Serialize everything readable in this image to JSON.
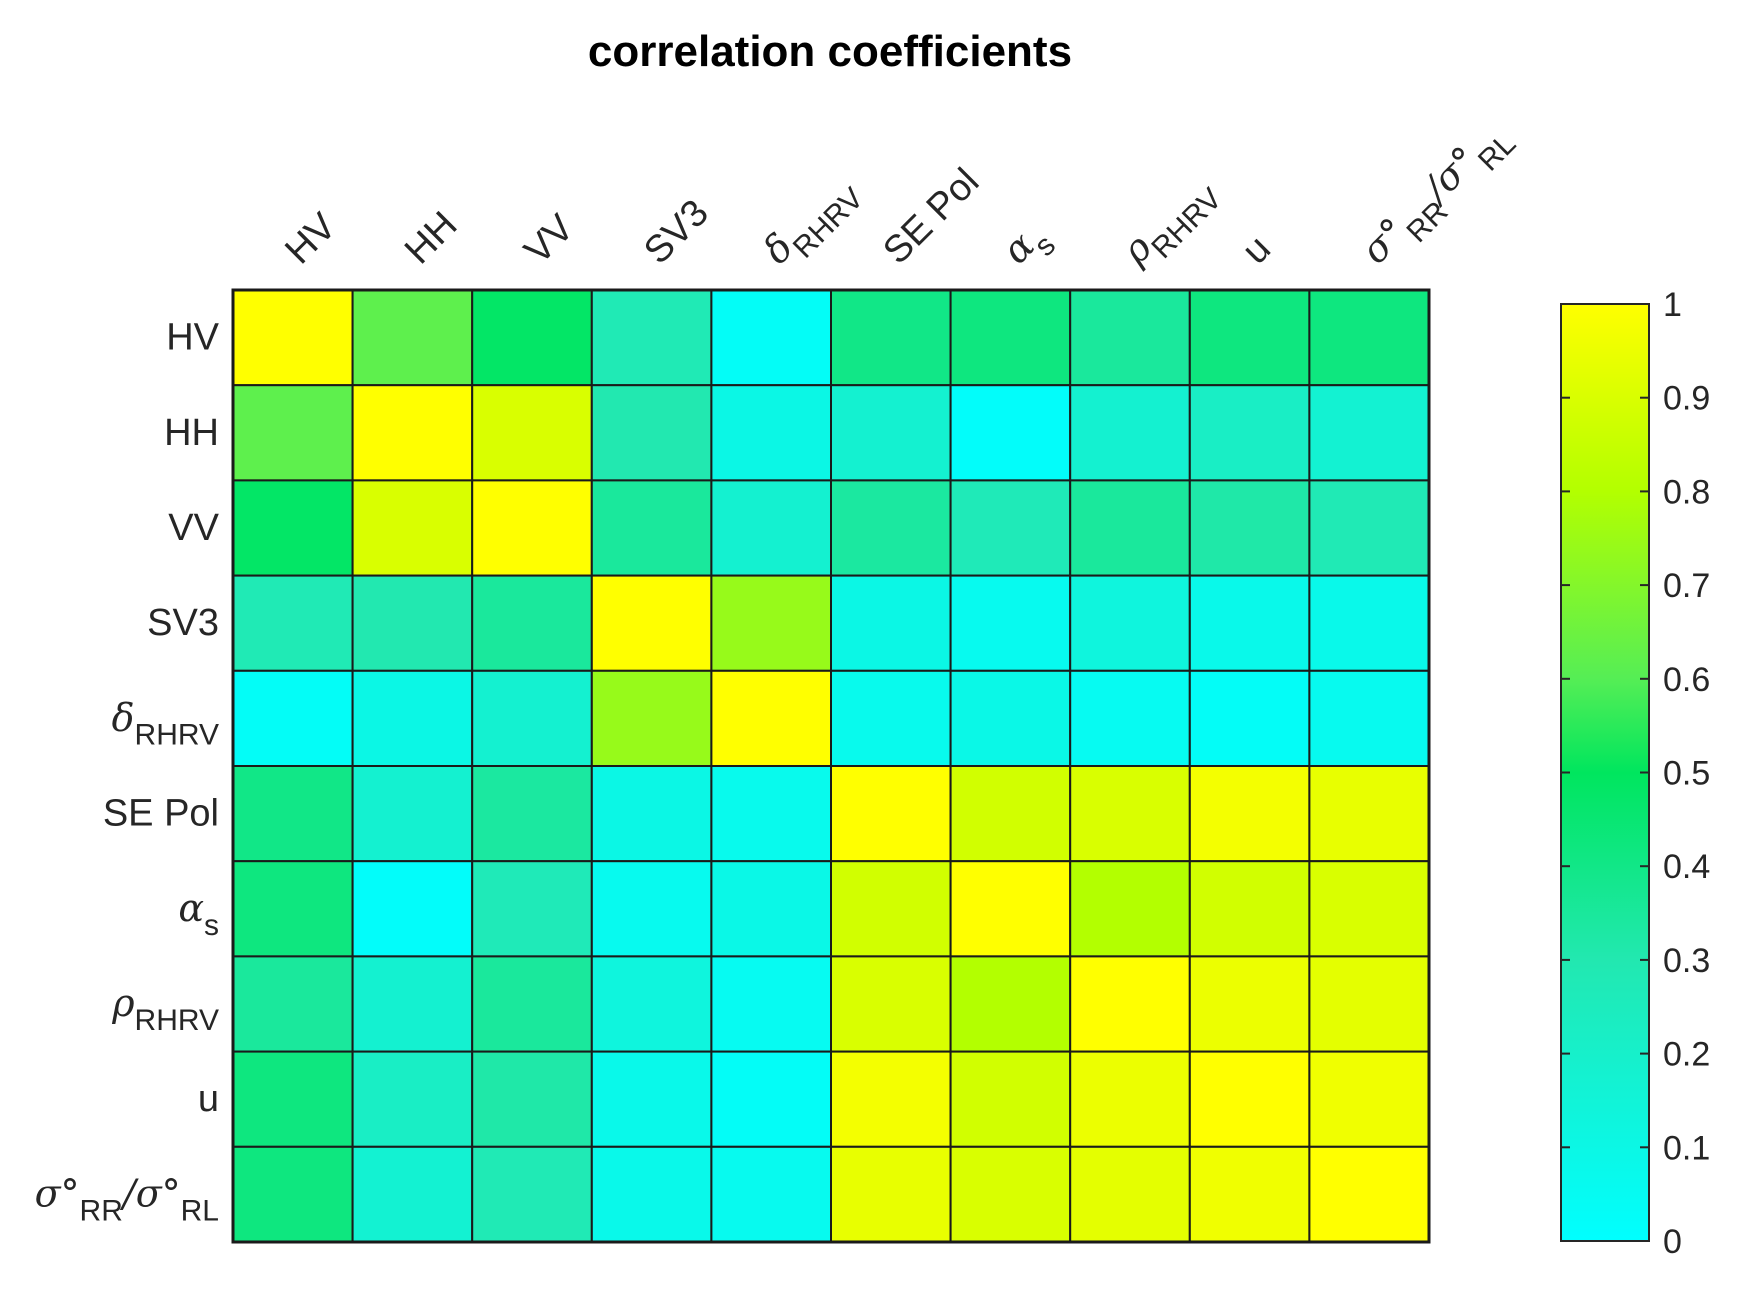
{
  "chart_data": {
    "type": "heatmap",
    "title": "correlation coefficients",
    "labels": [
      {
        "base": "HV",
        "sub": "",
        "greek": false
      },
      {
        "base": "HH",
        "sub": "",
        "greek": false
      },
      {
        "base": "VV",
        "sub": "",
        "greek": false
      },
      {
        "base": "SV3",
        "sub": "",
        "greek": false
      },
      {
        "base": "δ",
        "sub": "RHRV",
        "greek": true
      },
      {
        "base": "SE Pol",
        "sub": "",
        "greek": false
      },
      {
        "base": "α",
        "sub": "s",
        "greek": true
      },
      {
        "base": "ρ",
        "sub": "RHRV",
        "greek": true
      },
      {
        "base": "u",
        "sub": "",
        "greek": false
      },
      {
        "base": "σ°",
        "sub": "RR",
        "mid": "/σ°",
        "sub2": "RL",
        "greek": true
      }
    ],
    "matrix": [
      [
        1.0,
        0.62,
        0.48,
        0.28,
        0.03,
        0.4,
        0.42,
        0.35,
        0.42,
        0.42
      ],
      [
        0.62,
        1.0,
        0.9,
        0.3,
        0.1,
        0.18,
        0.02,
        0.18,
        0.22,
        0.17
      ],
      [
        0.48,
        0.9,
        1.0,
        0.35,
        0.18,
        0.34,
        0.27,
        0.35,
        0.32,
        0.28
      ],
      [
        0.28,
        0.3,
        0.35,
        1.0,
        0.74,
        0.1,
        0.06,
        0.13,
        0.08,
        0.08
      ],
      [
        0.03,
        0.1,
        0.18,
        0.74,
        1.0,
        0.07,
        0.09,
        0.05,
        0.03,
        0.06
      ],
      [
        0.4,
        0.18,
        0.34,
        0.1,
        0.07,
        1.0,
        0.88,
        0.9,
        0.97,
        0.94
      ],
      [
        0.42,
        0.02,
        0.27,
        0.06,
        0.09,
        0.88,
        1.0,
        0.8,
        0.88,
        0.9
      ],
      [
        0.35,
        0.18,
        0.35,
        0.13,
        0.05,
        0.9,
        0.8,
        1.0,
        0.95,
        0.93
      ],
      [
        0.42,
        0.22,
        0.32,
        0.08,
        0.03,
        0.97,
        0.88,
        0.95,
        1.0,
        0.96
      ],
      [
        0.42,
        0.17,
        0.28,
        0.08,
        0.06,
        0.94,
        0.9,
        0.93,
        0.96,
        1.0
      ]
    ],
    "colorbar": {
      "min": 0,
      "max": 1,
      "ticks": [
        "0",
        "0.1",
        "0.2",
        "0.3",
        "0.4",
        "0.5",
        "0.6",
        "0.7",
        "0.8",
        "0.9",
        "1"
      ],
      "colormap": [
        [
          0.0,
          "#00ffff"
        ],
        [
          0.3,
          "#22e8b0"
        ],
        [
          0.5,
          "#00e65e"
        ],
        [
          0.6,
          "#55ee55"
        ],
        [
          0.8,
          "#b3ff00"
        ],
        [
          1.0,
          "#ffff00"
        ]
      ]
    },
    "grid": true,
    "colorbar_position": "right"
  }
}
